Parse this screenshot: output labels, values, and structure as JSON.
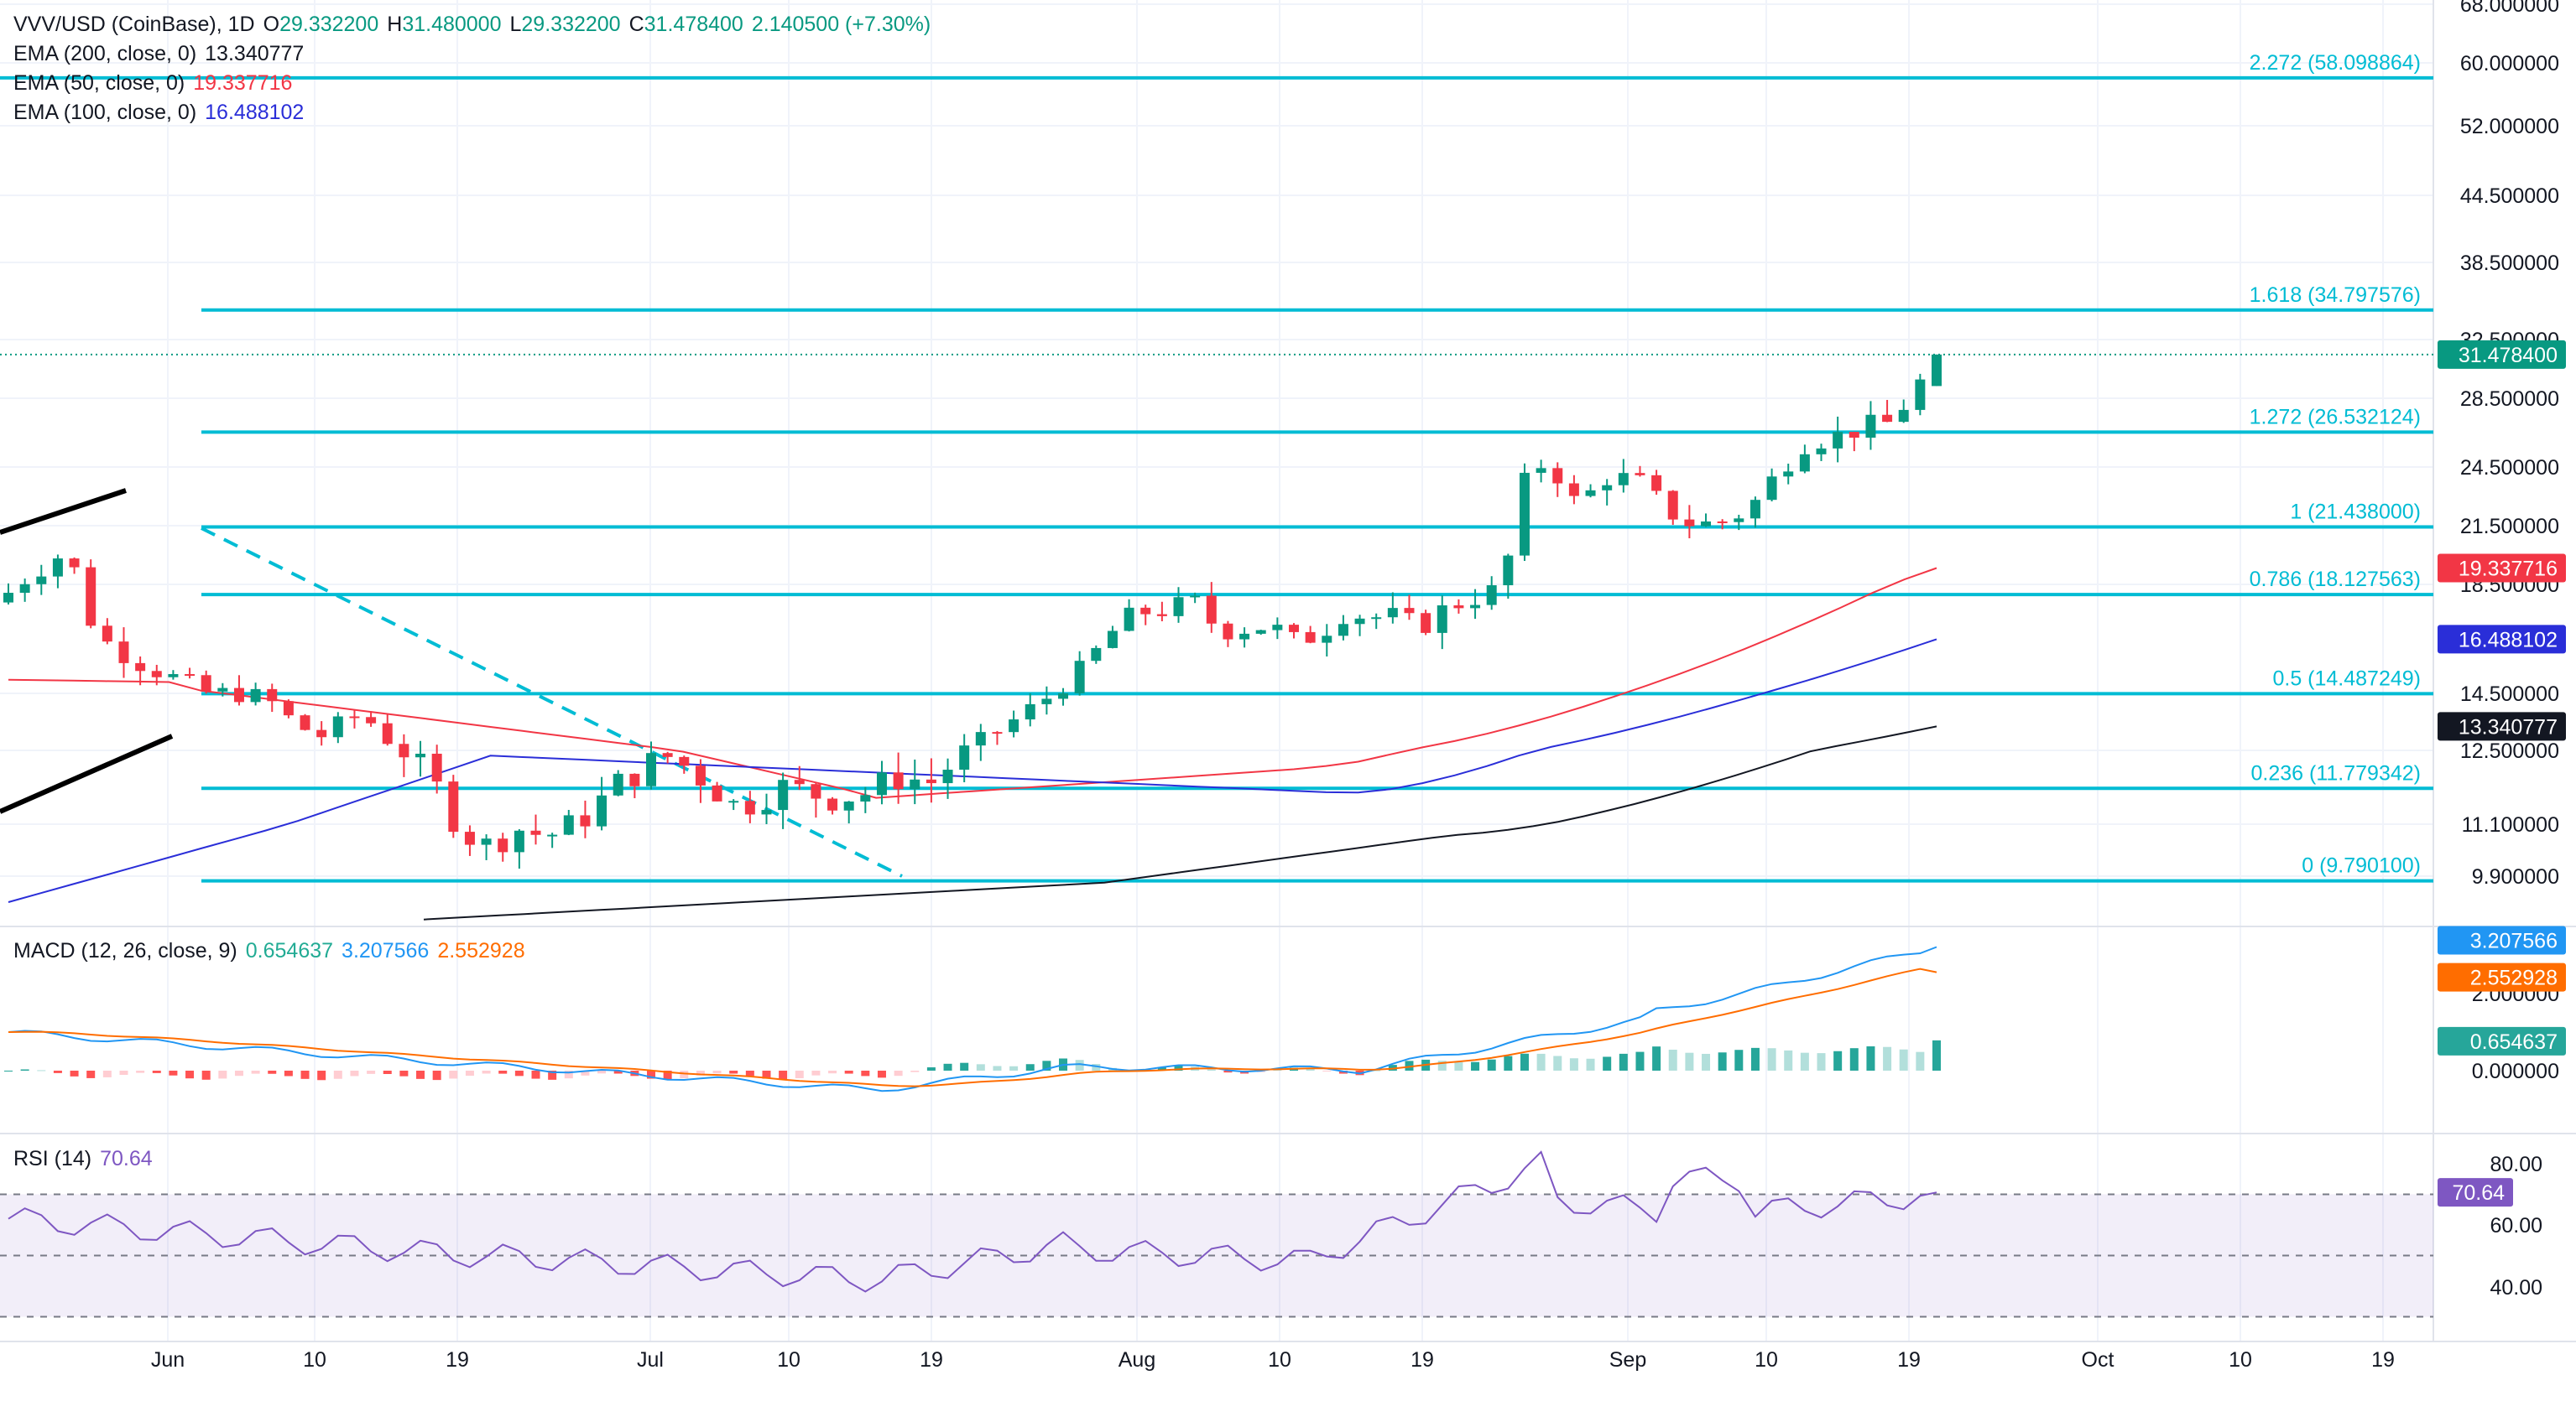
{
  "header": {
    "symbol": "VVV/USD (CoinBase), 1D",
    "o_label": "O",
    "o": "29.332200",
    "h_label": "H",
    "h": "31.480000",
    "l_label": "L",
    "l": "29.332200",
    "c_label": "C",
    "c": "31.478400",
    "change": "2.140500 (+7.30%)"
  },
  "indicators": {
    "ema200": {
      "label": "EMA (200, close, 0)",
      "value": "13.340777",
      "color": "#131722"
    },
    "ema50": {
      "label": "EMA (50, close, 0)",
      "value": "19.337716",
      "color": "#f23645"
    },
    "ema100": {
      "label": "EMA (100, close, 0)",
      "value": "16.488102",
      "color": "#2a2ed8"
    },
    "macd": {
      "label": "MACD (12, 26, close, 9)",
      "hist": "0.654637",
      "macd": "3.207566",
      "signal": "2.552928"
    },
    "rsi": {
      "label": "RSI (14)",
      "value": "70.64"
    }
  },
  "colors": {
    "up": "#089981",
    "down": "#f23645",
    "fib": "#00bcd4",
    "ema50": "#f23645",
    "ema100": "#2a2ed8",
    "ema200": "#131722",
    "macd": "#2196f3",
    "signal": "#ff6d00",
    "rsi": "#7e57c2",
    "hist_up_strong": "#26a69a",
    "hist_up_weak": "#b2dfdb",
    "hist_down_strong": "#ff5252",
    "hist_down_weak": "#ffcdd2"
  },
  "chart_data": {
    "type": "candlestick",
    "price_axis_labels": [
      "68.000000",
      "60.000000",
      "52.000000",
      "44.500000",
      "38.500000",
      "32.500000",
      "28.500000",
      "24.500000",
      "21.500000",
      "18.500000",
      "14.500000",
      "12.500000",
      "11.100000",
      "9.900000"
    ],
    "time_axis_labels": [
      "Jun",
      "10",
      "19",
      "Jul",
      "10",
      "19",
      "Aug",
      "10",
      "19",
      "Sep",
      "10",
      "19",
      "Oct",
      "10",
      "19"
    ],
    "fib_levels": [
      {
        "label": "2.272 (58.098864)",
        "price": 58.098864
      },
      {
        "label": "1.618 (34.797576)",
        "price": 34.797576
      },
      {
        "label": "1.272 (26.532124)",
        "price": 26.532124
      },
      {
        "label": "1 (21.438000)",
        "price": 21.438
      },
      {
        "label": "0.786 (18.127563)",
        "price": 18.127563
      },
      {
        "label": "0.5 (14.487249)",
        "price": 14.487249
      },
      {
        "label": "0.236 (11.779342)",
        "price": 11.779342
      },
      {
        "label": "0 (9.790100)",
        "price": 9.7901
      }
    ],
    "last_price": "31.478400",
    "ema_badges": {
      "ema50": "19.337716",
      "ema100": "16.488102",
      "ema200": "13.340777"
    },
    "macd_axis_labels": [
      "2.000000",
      "0.000000"
    ],
    "rsi_axis_labels": [
      "80.00",
      "60.00",
      "40.00"
    ],
    "rsi_bands": [
      70,
      50,
      30
    ]
  }
}
